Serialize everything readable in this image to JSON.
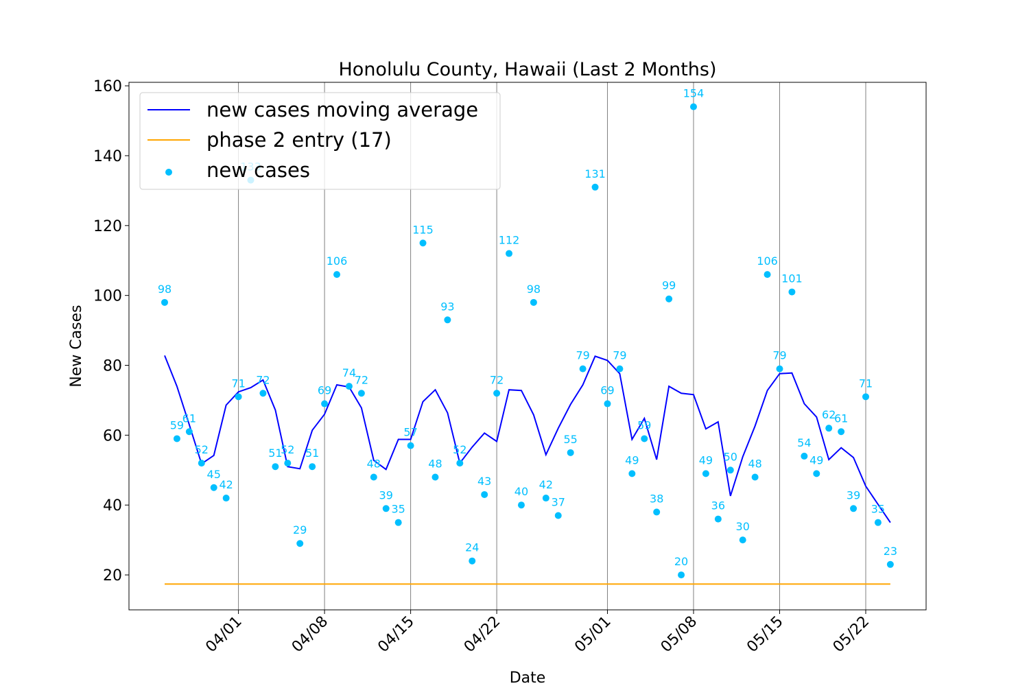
{
  "chart_data": {
    "type": "line",
    "title": "Honolulu County, Hawaii (Last 2 Months)",
    "xlabel": "Date",
    "ylabel": "New Cases",
    "ylim": [
      10,
      161
    ],
    "yticks": [
      20,
      40,
      60,
      80,
      100,
      120,
      140,
      160
    ],
    "x_start": "2020-03-26",
    "x_ticks": [
      {
        "date": "2020-04-01",
        "label": "04/01"
      },
      {
        "date": "2020-04-08",
        "label": "04/08"
      },
      {
        "date": "2020-04-15",
        "label": "04/15"
      },
      {
        "date": "2020-04-22",
        "label": "04/22"
      },
      {
        "date": "2020-05-01",
        "label": "05/01"
      },
      {
        "date": "2020-05-08",
        "label": "05/08"
      },
      {
        "date": "2020-05-15",
        "label": "05/15"
      },
      {
        "date": "2020-05-22",
        "label": "05/22"
      }
    ],
    "vertical_grid": true,
    "legend_position": "upper-left",
    "series": [
      {
        "name": "new cases moving average",
        "kind": "line",
        "color": "#0000ff",
        "values": [
          82.8,
          74.0,
          63.0,
          51.8,
          54.2,
          68.6,
          72.4,
          73.6,
          75.8,
          67.2,
          51.0,
          50.4,
          61.4,
          66.0,
          74.4,
          73.8,
          67.8,
          52.8,
          50.2,
          58.8,
          58.8,
          69.6,
          73.0,
          66.4,
          52.0,
          56.6,
          60.6,
          58.2,
          73.0,
          72.8,
          65.8,
          54.4,
          62.0,
          68.8,
          74.4,
          82.6,
          81.4,
          77.6,
          58.8,
          64.8,
          53.0,
          74.0,
          72.0,
          71.6,
          61.8,
          63.8,
          42.6,
          53.8,
          62.6,
          72.8,
          77.6,
          77.8,
          69.0,
          65.2,
          53.0,
          56.4,
          53.6,
          45.4,
          40.2,
          35.0
        ]
      },
      {
        "name": "phase 2 entry (17)",
        "kind": "hline",
        "color": "#ffa500",
        "value": 17.4
      },
      {
        "name": "new cases",
        "kind": "scatter",
        "color": "#00bfff",
        "values": [
          98,
          59,
          61,
          52,
          45,
          42,
          71,
          133,
          72,
          51,
          52,
          29,
          51,
          69,
          106,
          74,
          72,
          48,
          39,
          35,
          57,
          115,
          48,
          93,
          52,
          24,
          43,
          72,
          112,
          40,
          98,
          42,
          37,
          55,
          79,
          131,
          69,
          79,
          49,
          59,
          38,
          99,
          20,
          154,
          49,
          36,
          50,
          30,
          48,
          106,
          79,
          101,
          54,
          49,
          62,
          61,
          39,
          71,
          35,
          23
        ]
      }
    ]
  }
}
